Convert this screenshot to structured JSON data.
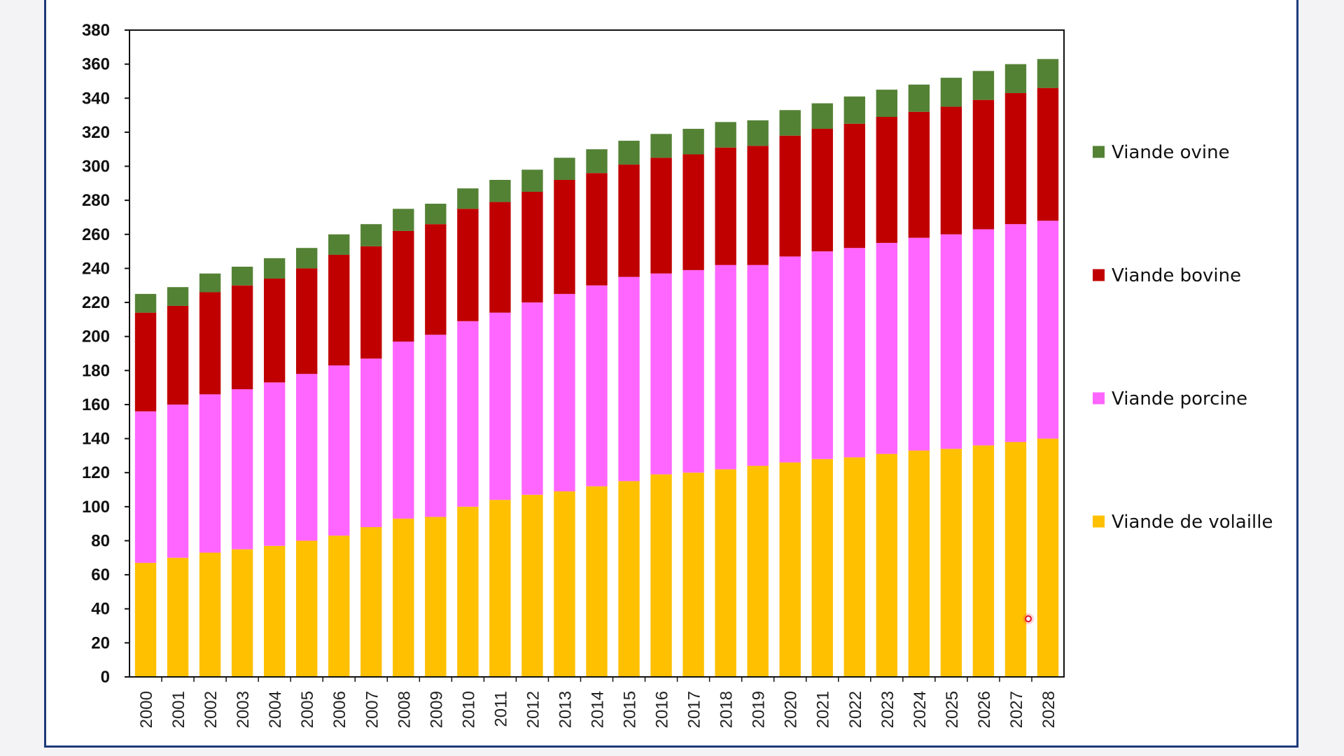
{
  "chart_data": {
    "type": "bar",
    "stacked": true,
    "categories": [
      "2000",
      "2001",
      "2002",
      "2003",
      "2004",
      "2005",
      "2006",
      "2007",
      "2008",
      "2009",
      "2010",
      "2011",
      "2012",
      "2013",
      "2014",
      "2015",
      "2016",
      "2017",
      "2018",
      "2019",
      "2020",
      "2021",
      "2022",
      "2023",
      "2024",
      "2025",
      "2026",
      "2027",
      "2028"
    ],
    "series": [
      {
        "name": "Viande de volaille",
        "color": "#ffc000",
        "values": [
          67,
          70,
          73,
          75,
          77,
          80,
          83,
          88,
          93,
          94,
          100,
          104,
          107,
          109,
          112,
          115,
          119,
          120,
          122,
          124,
          126,
          128,
          129,
          131,
          133,
          134,
          136,
          138,
          140
        ]
      },
      {
        "name": "Viande porcine",
        "color": "#ff66ff",
        "values": [
          89,
          90,
          93,
          94,
          96,
          98,
          100,
          99,
          104,
          107,
          109,
          110,
          113,
          116,
          118,
          120,
          118,
          119,
          120,
          118,
          121,
          122,
          123,
          124,
          125,
          126,
          127,
          128,
          128
        ]
      },
      {
        "name": "Viande bovine",
        "color": "#c00000",
        "values": [
          58,
          58,
          60,
          61,
          61,
          62,
          65,
          66,
          65,
          65,
          66,
          65,
          65,
          67,
          66,
          66,
          68,
          68,
          69,
          70,
          71,
          72,
          73,
          74,
          74,
          75,
          76,
          77,
          78
        ]
      },
      {
        "name": "Viande ovine",
        "color": "#548235",
        "values": [
          11,
          11,
          11,
          11,
          12,
          12,
          12,
          13,
          13,
          12,
          12,
          13,
          13,
          13,
          14,
          14,
          14,
          15,
          15,
          15,
          15,
          15,
          16,
          16,
          16,
          17,
          17,
          17,
          17
        ]
      }
    ],
    "legend_order": [
      "Viande ovine",
      "Viande bovine",
      "Viande porcine",
      "Viande de volaille"
    ],
    "yticks": [
      0,
      20,
      40,
      60,
      80,
      100,
      120,
      140,
      160,
      180,
      200,
      220,
      240,
      260,
      280,
      300,
      320,
      340,
      360,
      380
    ],
    "ylim": [
      0,
      380
    ],
    "title": "",
    "xlabel": "",
    "ylabel": "",
    "legend_position": "right",
    "grid": false
  }
}
